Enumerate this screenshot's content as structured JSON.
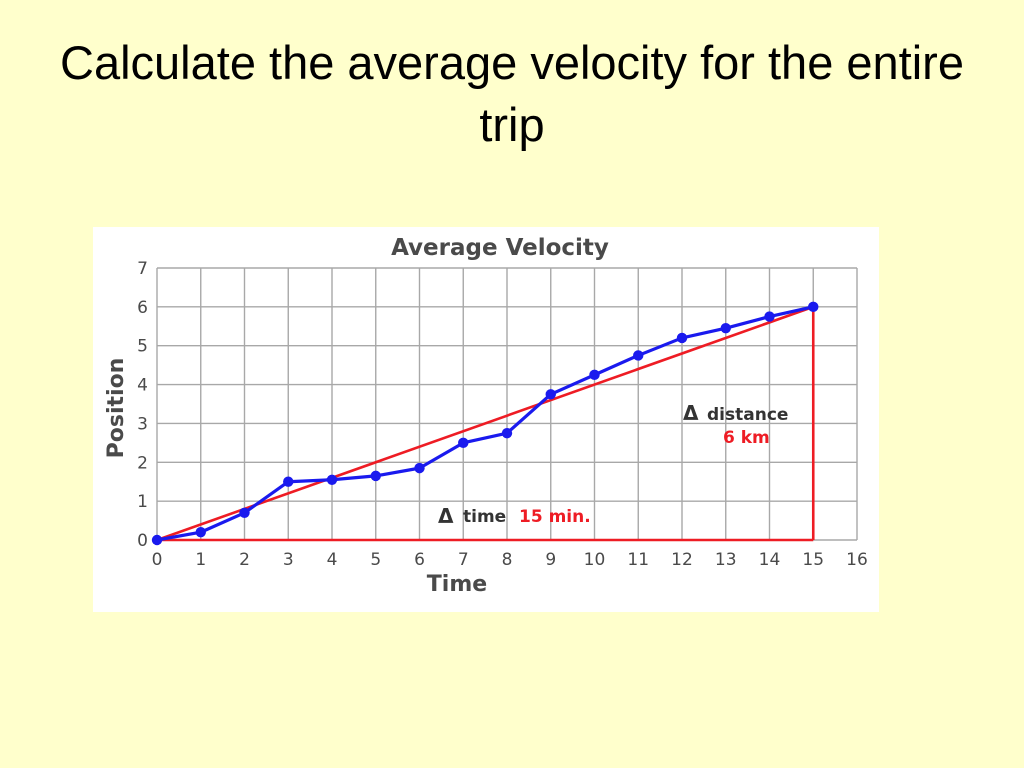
{
  "slide": {
    "title": "Calculate the average velocity for the entire trip"
  },
  "chart_data": {
    "type": "line",
    "title": "Average Velocity",
    "xlabel": "Time",
    "ylabel": "Position",
    "xlim": [
      0,
      16
    ],
    "ylim": [
      0,
      7
    ],
    "x_ticks": [
      "0",
      "1",
      "2",
      "3",
      "4",
      "5",
      "6",
      "7",
      "8",
      "9",
      "10",
      "11",
      "12",
      "13",
      "14",
      "15",
      "16"
    ],
    "y_ticks": [
      "0",
      "1",
      "2",
      "3",
      "4",
      "5",
      "6",
      "7"
    ],
    "grid": true,
    "series": [
      {
        "color": "#1a1aee",
        "points": [
          [
            0,
            0
          ],
          [
            1,
            0.2
          ],
          [
            2,
            0.7
          ],
          [
            3,
            1.5
          ],
          [
            4,
            1.55
          ],
          [
            5,
            1.65
          ],
          [
            6,
            1.85
          ],
          [
            7,
            2.5
          ],
          [
            8,
            2.75
          ],
          [
            9,
            3.75
          ],
          [
            10,
            4.25
          ],
          [
            11,
            4.75
          ],
          [
            12,
            5.2
          ],
          [
            13,
            5.45
          ],
          [
            14,
            5.75
          ],
          [
            15,
            6
          ]
        ]
      }
    ],
    "average_line": {
      "color": "#ee1c24",
      "from": [
        0,
        0
      ],
      "to": [
        15,
        6
      ]
    },
    "delta_legs": {
      "color": "#ee1c24",
      "horizontal": [
        [
          0,
          0
        ],
        [
          15,
          0
        ]
      ],
      "vertical": [
        [
          15,
          0
        ],
        [
          15,
          6
        ]
      ]
    },
    "annotations": {
      "delta_symbol": "Δ",
      "distance_label": "distance",
      "distance_value": "6 km",
      "time_label": "time",
      "time_value": "15 min."
    }
  }
}
